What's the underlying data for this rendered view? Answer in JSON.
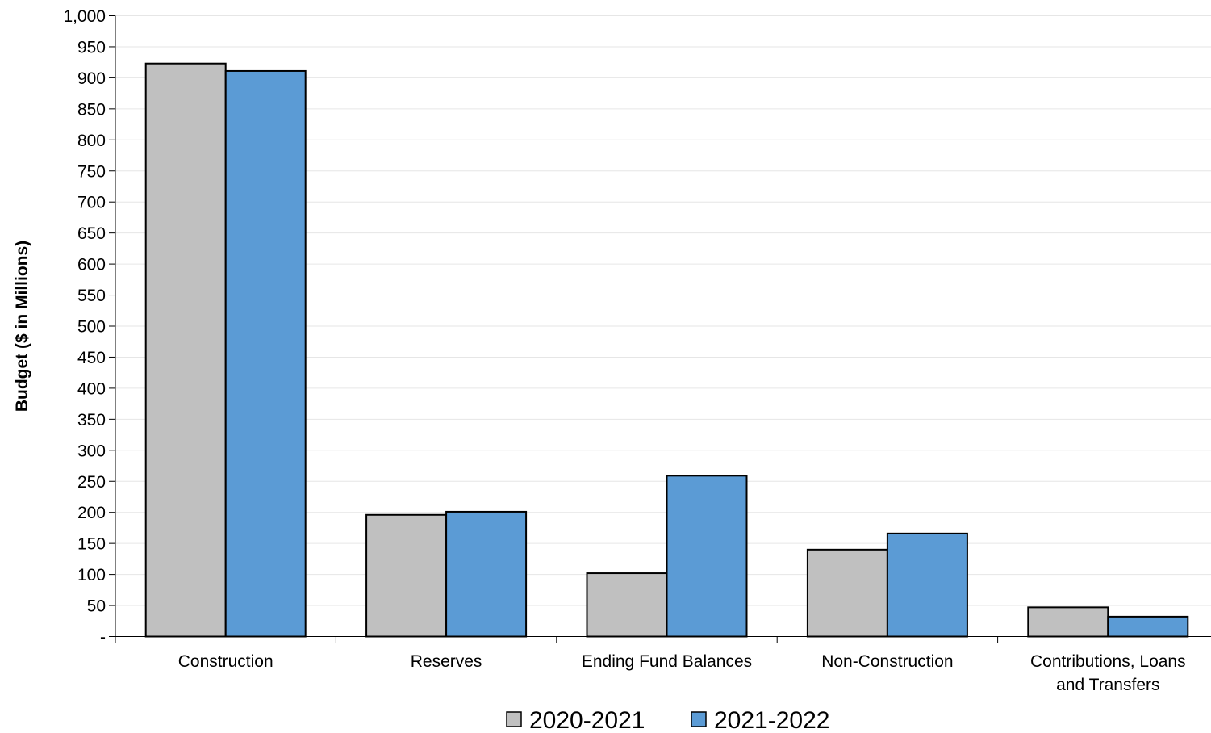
{
  "chart_data": {
    "type": "bar",
    "title": "",
    "xlabel": "",
    "ylabel": "Budget ($ in Millions)",
    "ylim": [
      0,
      1000
    ],
    "ytick_step": 50,
    "ytick_labels": [
      "-",
      "50",
      "100",
      "150",
      "200",
      "250",
      "300",
      "350",
      "400",
      "450",
      "500",
      "550",
      "600",
      "650",
      "700",
      "750",
      "800",
      "850",
      "900",
      "950",
      "1,000"
    ],
    "grid": true,
    "legend_position": "bottom",
    "categories": [
      [
        "Construction"
      ],
      [
        "Reserves"
      ],
      [
        "Ending Fund Balances"
      ],
      [
        "Non-Construction"
      ],
      [
        "Contributions, Loans",
        "and Transfers"
      ]
    ],
    "series": [
      {
        "name": "2020-2021",
        "color": "#c0c0c0",
        "values": [
          923,
          196,
          102,
          140,
          47
        ]
      },
      {
        "name": "2021-2022",
        "color": "#5b9bd5",
        "values": [
          911,
          201,
          259,
          166,
          32
        ]
      }
    ]
  }
}
